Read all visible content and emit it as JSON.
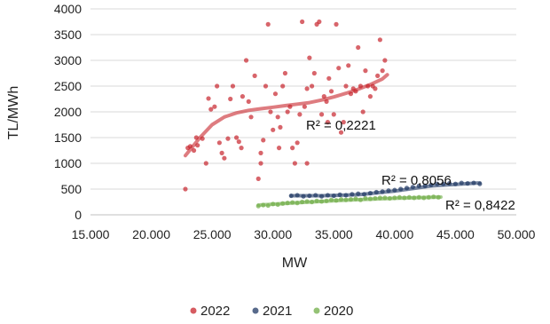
{
  "chart_data": {
    "type": "scatter",
    "title": "",
    "xlabel": "MW",
    "ylabel": "TL/MWh",
    "xlim": [
      15000,
      50000
    ],
    "ylim": [
      0,
      4000
    ],
    "x_ticks": [
      "15.000",
      "20.000",
      "25.000",
      "30.000",
      "35.000",
      "40.000",
      "45.000",
      "50.000"
    ],
    "y_ticks": [
      "0",
      "500",
      "1000",
      "1500",
      "2000",
      "2500",
      "3000",
      "3500",
      "4000"
    ],
    "grid": "horizontal",
    "legend_position": "bottom",
    "series": [
      {
        "name": "2022",
        "color": "#c8242c",
        "points": [
          [
            22800,
            500
          ],
          [
            23000,
            1300
          ],
          [
            23200,
            1330
          ],
          [
            23500,
            1250
          ],
          [
            23700,
            1500
          ],
          [
            23800,
            1350
          ],
          [
            24200,
            1480
          ],
          [
            24500,
            1000
          ],
          [
            24700,
            2260
          ],
          [
            24900,
            2050
          ],
          [
            25200,
            2100
          ],
          [
            25400,
            2500
          ],
          [
            25600,
            1400
          ],
          [
            25800,
            1200
          ],
          [
            26000,
            1100
          ],
          [
            26300,
            1480
          ],
          [
            26500,
            2250
          ],
          [
            26700,
            2500
          ],
          [
            27000,
            1500
          ],
          [
            27200,
            1420
          ],
          [
            27400,
            1300
          ],
          [
            27500,
            2300
          ],
          [
            27800,
            3000
          ],
          [
            28000,
            2200
          ],
          [
            28200,
            1900
          ],
          [
            28500,
            2700
          ],
          [
            28800,
            700
          ],
          [
            29000,
            1200
          ],
          [
            29200,
            1450
          ],
          [
            29400,
            2500
          ],
          [
            29600,
            3700
          ],
          [
            29800,
            2000
          ],
          [
            30000,
            1650
          ],
          [
            30200,
            2350
          ],
          [
            30400,
            1900
          ],
          [
            30600,
            1700
          ],
          [
            30800,
            2500
          ],
          [
            31000,
            2750
          ],
          [
            31200,
            2000
          ],
          [
            31400,
            2100
          ],
          [
            31600,
            1300
          ],
          [
            31800,
            1000
          ],
          [
            32000,
            1400
          ],
          [
            32200,
            1950
          ],
          [
            32400,
            3750
          ],
          [
            32600,
            2100
          ],
          [
            32800,
            2450
          ],
          [
            33000,
            3050
          ],
          [
            33200,
            2500
          ],
          [
            33400,
            2750
          ],
          [
            33600,
            3700
          ],
          [
            33800,
            3750
          ],
          [
            34000,
            1950
          ],
          [
            34200,
            2300
          ],
          [
            34400,
            2200
          ],
          [
            34600,
            2650
          ],
          [
            34800,
            2400
          ],
          [
            35000,
            1950
          ],
          [
            35200,
            3700
          ],
          [
            35400,
            2850
          ],
          [
            35600,
            1600
          ],
          [
            35800,
            1800
          ],
          [
            36000,
            2500
          ],
          [
            36200,
            2900
          ],
          [
            36400,
            2350
          ],
          [
            36600,
            2450
          ],
          [
            36800,
            2400
          ],
          [
            37000,
            3250
          ],
          [
            37200,
            2500
          ],
          [
            37400,
            2000
          ],
          [
            37600,
            2800
          ],
          [
            37800,
            2500
          ],
          [
            38000,
            2300
          ],
          [
            38200,
            2500
          ],
          [
            38400,
            2450
          ],
          [
            38600,
            2700
          ],
          [
            38800,
            3400
          ],
          [
            39000,
            2800
          ],
          [
            39200,
            3000
          ],
          [
            29000,
            1000
          ],
          [
            30500,
            1300
          ],
          [
            32800,
            1000
          ],
          [
            34500,
            1800
          ]
        ]
      },
      {
        "name": "2021",
        "color": "#203864",
        "points": [
          [
            31500,
            370
          ],
          [
            32000,
            380
          ],
          [
            32500,
            360
          ],
          [
            33000,
            370
          ],
          [
            33500,
            380
          ],
          [
            34000,
            360
          ],
          [
            34500,
            380
          ],
          [
            35000,
            370
          ],
          [
            35500,
            390
          ],
          [
            36000,
            380
          ],
          [
            36500,
            400
          ],
          [
            37000,
            410
          ],
          [
            37500,
            400
          ],
          [
            38000,
            420
          ],
          [
            38500,
            440
          ],
          [
            39000,
            450
          ],
          [
            39500,
            470
          ],
          [
            40000,
            480
          ],
          [
            40500,
            500
          ],
          [
            41000,
            520
          ],
          [
            41500,
            540
          ],
          [
            42000,
            560
          ],
          [
            42500,
            560
          ],
          [
            43000,
            580
          ],
          [
            43500,
            600
          ],
          [
            44000,
            600
          ],
          [
            44500,
            610
          ],
          [
            45000,
            600
          ],
          [
            45500,
            620
          ],
          [
            46000,
            610
          ],
          [
            46500,
            620
          ],
          [
            47000,
            600
          ]
        ]
      },
      {
        "name": "2020",
        "color": "#70ad47",
        "points": [
          [
            28800,
            170
          ],
          [
            29200,
            190
          ],
          [
            29600,
            180
          ],
          [
            30000,
            210
          ],
          [
            30400,
            200
          ],
          [
            30800,
            220
          ],
          [
            31200,
            230
          ],
          [
            31600,
            240
          ],
          [
            32000,
            230
          ],
          [
            32400,
            250
          ],
          [
            32800,
            260
          ],
          [
            33200,
            250
          ],
          [
            33600,
            270
          ],
          [
            34000,
            260
          ],
          [
            34400,
            270
          ],
          [
            34800,
            290
          ],
          [
            35200,
            280
          ],
          [
            35600,
            300
          ],
          [
            36000,
            290
          ],
          [
            36400,
            300
          ],
          [
            36800,
            310
          ],
          [
            37200,
            290
          ],
          [
            37600,
            320
          ],
          [
            38000,
            310
          ],
          [
            38400,
            320
          ],
          [
            38800,
            330
          ],
          [
            39200,
            330
          ],
          [
            39600,
            320
          ],
          [
            40000,
            330
          ],
          [
            40400,
            340
          ],
          [
            40800,
            330
          ],
          [
            41200,
            340
          ],
          [
            41600,
            330
          ],
          [
            42000,
            340
          ],
          [
            42400,
            330
          ],
          [
            42800,
            340
          ],
          [
            43200,
            350
          ],
          [
            43600,
            340
          ]
        ]
      }
    ],
    "trendlines": [
      {
        "series": "2022",
        "label": "R² = 0,2221",
        "x_range": [
          22800,
          39400
        ],
        "points": [
          [
            22800,
            1150
          ],
          [
            24000,
            1500
          ],
          [
            25000,
            1750
          ],
          [
            26000,
            1900
          ],
          [
            27000,
            1980
          ],
          [
            28000,
            2030
          ],
          [
            29000,
            2060
          ],
          [
            30000,
            2090
          ],
          [
            31000,
            2120
          ],
          [
            32000,
            2150
          ],
          [
            33000,
            2180
          ],
          [
            34000,
            2230
          ],
          [
            35000,
            2290
          ],
          [
            36000,
            2360
          ],
          [
            37000,
            2440
          ],
          [
            38000,
            2530
          ],
          [
            39000,
            2640
          ],
          [
            39400,
            2720
          ]
        ]
      },
      {
        "series": "2021",
        "label": "R² = 0,8056",
        "x_range": [
          31500,
          47000
        ],
        "points": [
          [
            31500,
            370
          ],
          [
            34000,
            370
          ],
          [
            37000,
            390
          ],
          [
            40000,
            460
          ],
          [
            43000,
            560
          ],
          [
            47000,
            620
          ]
        ]
      },
      {
        "series": "2020",
        "label": "R² = 0,8422",
        "x_range": [
          28800,
          43800
        ],
        "points": [
          [
            28800,
            190
          ],
          [
            32000,
            235
          ],
          [
            36000,
            285
          ],
          [
            40000,
            320
          ],
          [
            43800,
            345
          ]
        ]
      }
    ]
  }
}
